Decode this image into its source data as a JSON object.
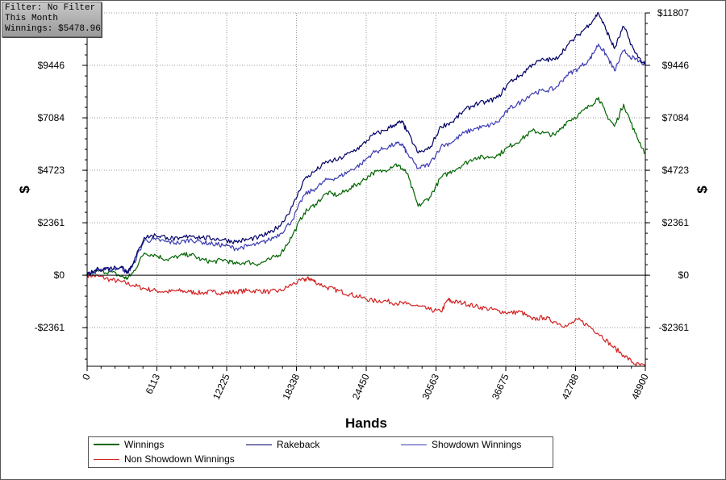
{
  "info_box": {
    "filter": "Filter: No Filter",
    "period": "This Month",
    "winnings": "Winnings: $5478.96"
  },
  "chart_data": {
    "type": "line",
    "xlabel": "Hands",
    "ylabel_left": "$",
    "ylabel_right": "$",
    "x_ticks": [
      0,
      6113,
      12225,
      18338,
      24450,
      30563,
      36675,
      42788,
      48900
    ],
    "y_ticks": [
      -2361,
      0,
      2361,
      4723,
      7084,
      9446,
      11807
    ],
    "y_tick_labels": [
      "-$2361",
      "$0",
      "$2361",
      "$4723",
      "$7084",
      "$9446",
      "$11807"
    ],
    "xlim": [
      0,
      48900
    ],
    "ylim": [
      -4100,
      11807
    ],
    "grid": true,
    "legend_position": "bottom",
    "series": [
      {
        "name": "Winnings",
        "color": "#006400",
        "x": [
          0,
          1000,
          2000,
          3000,
          3500,
          4000,
          5000,
          6000,
          7000,
          8000,
          9000,
          10000,
          11000,
          12000,
          13000,
          14000,
          15000,
          16000,
          17000,
          18000,
          19000,
          20000,
          21000,
          22000,
          23000,
          24000,
          25000,
          26000,
          27000,
          27600,
          28000,
          29000,
          30000,
          31000,
          32000,
          33000,
          34000,
          35000,
          36000,
          37000,
          38000,
          39000,
          40000,
          41000,
          42000,
          43000,
          44000,
          44800,
          45500,
          46200,
          47000,
          48000,
          48900
        ],
        "y": [
          0,
          180,
          150,
          -50,
          -150,
          100,
          1000,
          900,
          700,
          850,
          950,
          700,
          600,
          700,
          500,
          600,
          500,
          700,
          1000,
          1800,
          2800,
          3200,
          3700,
          3600,
          3900,
          4200,
          4600,
          4700,
          5000,
          4800,
          4600,
          3100,
          3500,
          4400,
          4700,
          5000,
          5300,
          5300,
          5400,
          5800,
          6100,
          6500,
          6400,
          6300,
          6900,
          7200,
          7600,
          8000,
          7200,
          6700,
          7700,
          6400,
          5479
        ]
      },
      {
        "name": "Rakeback",
        "color": "#000066",
        "x": [
          0,
          1000,
          2000,
          3000,
          3500,
          4000,
          5000,
          6000,
          7000,
          8000,
          9000,
          10000,
          11000,
          12000,
          13000,
          14000,
          15000,
          16000,
          17000,
          18000,
          19000,
          20000,
          21000,
          22000,
          23000,
          24000,
          25000,
          26000,
          27000,
          27600,
          28000,
          29000,
          30000,
          31000,
          32000,
          33000,
          34000,
          35000,
          36000,
          37000,
          38000,
          39000,
          40000,
          41000,
          42000,
          43000,
          44000,
          44800,
          45500,
          46200,
          47000,
          48000,
          48900
        ],
        "y": [
          0,
          280,
          300,
          400,
          150,
          500,
          1700,
          1800,
          1700,
          1600,
          1800,
          1700,
          1650,
          1600,
          1500,
          1600,
          1700,
          1900,
          2300,
          3100,
          4300,
          4700,
          5100,
          5200,
          5500,
          5800,
          6300,
          6500,
          6800,
          6900,
          6500,
          5500,
          5700,
          6700,
          6900,
          7400,
          7700,
          7800,
          8000,
          8700,
          9000,
          9500,
          9700,
          9700,
          10300,
          10800,
          11300,
          11807,
          11000,
          10200,
          11200,
          10000,
          9446
        ]
      },
      {
        "name": "Showdown Winnings",
        "color": "#3c3cb4",
        "x": [
          0,
          1000,
          2000,
          3000,
          3500,
          4000,
          5000,
          6000,
          7000,
          8000,
          9000,
          10000,
          11000,
          12000,
          13000,
          14000,
          15000,
          16000,
          17000,
          18000,
          19000,
          20000,
          21000,
          22000,
          23000,
          24000,
          25000,
          26000,
          27000,
          27600,
          28000,
          29000,
          30000,
          31000,
          32000,
          33000,
          34000,
          35000,
          36000,
          37000,
          38000,
          39000,
          40000,
          41000,
          42000,
          43000,
          44000,
          44800,
          45500,
          46200,
          47000,
          48000,
          48900
        ],
        "y": [
          0,
          250,
          250,
          350,
          100,
          450,
          1550,
          1600,
          1500,
          1450,
          1600,
          1500,
          1400,
          1350,
          1200,
          1300,
          1400,
          1600,
          1900,
          2500,
          3600,
          3900,
          4300,
          4400,
          4700,
          5000,
          5500,
          5700,
          5900,
          5900,
          5500,
          4800,
          5000,
          5800,
          6000,
          6400,
          6600,
          6700,
          6900,
          7500,
          7800,
          8200,
          8300,
          8400,
          9000,
          9300,
          9700,
          10400,
          9900,
          9200,
          10100,
          9700,
          9500
        ]
      },
      {
        "name": "Non Showdown Winnings",
        "color": "#d42020",
        "x": [
          0,
          1000,
          2000,
          3000,
          4000,
          5000,
          6000,
          7000,
          8000,
          9000,
          10000,
          11000,
          12000,
          13000,
          14000,
          15000,
          16000,
          17000,
          18000,
          19000,
          19500,
          20000,
          21000,
          22000,
          23000,
          24000,
          25000,
          26000,
          27000,
          28000,
          29000,
          30000,
          31000,
          31600,
          32000,
          33000,
          34000,
          35000,
          36000,
          37000,
          38000,
          39000,
          40000,
          41000,
          42000,
          43000,
          44000,
          45000,
          46000,
          47000,
          48000,
          48900
        ],
        "y": [
          0,
          -50,
          -200,
          -300,
          -450,
          -600,
          -700,
          -750,
          -700,
          -750,
          -800,
          -750,
          -800,
          -750,
          -700,
          -700,
          -750,
          -700,
          -400,
          -200,
          -150,
          -300,
          -550,
          -700,
          -850,
          -1000,
          -1150,
          -1150,
          -1250,
          -1300,
          -1400,
          -1550,
          -1650,
          -1100,
          -1200,
          -1250,
          -1400,
          -1500,
          -1600,
          -1700,
          -1650,
          -2000,
          -1900,
          -2100,
          -2300,
          -2000,
          -2300,
          -2700,
          -3200,
          -3600,
          -4000,
          -4100
        ]
      }
    ]
  }
}
